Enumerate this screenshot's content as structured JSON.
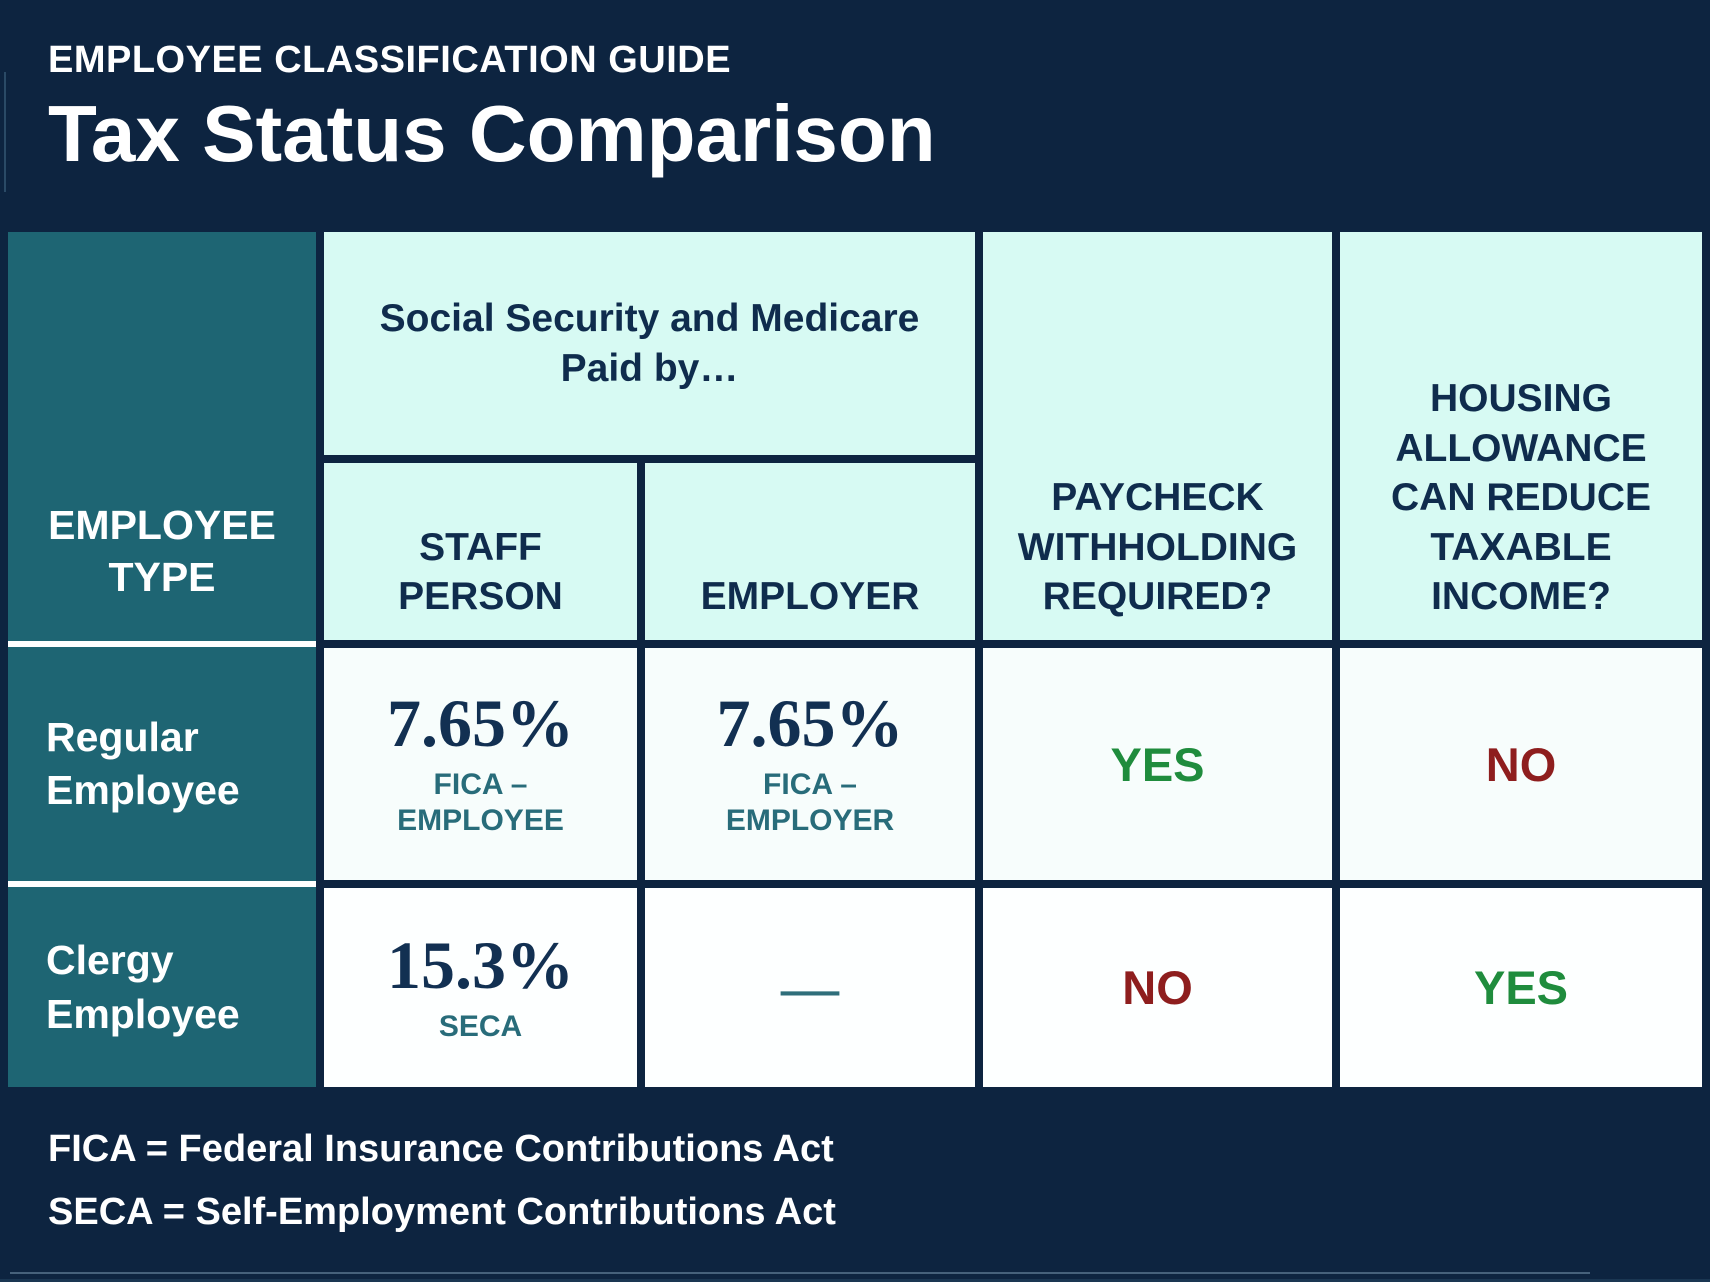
{
  "header": {
    "kicker": "EMPLOYEE CLASSIFICATION GUIDE",
    "title": "Tax Status Comparison"
  },
  "table": {
    "employee_type_header": "EMPLOYEE\nTYPE",
    "group_header": "Social Security and Medicare\nPaid by…",
    "columns": {
      "staff": "STAFF\nPERSON",
      "employer": "EMPLOYER",
      "withholding": "PAYCHECK\nWITHHOLDING\nREQUIRED?",
      "housing": "HOUSING\nALLOWANCE\nCAN REDUCE\nTAXABLE\nINCOME?"
    },
    "rows": [
      {
        "type": "Regular\nEmployee",
        "staff_pct": "7.65%",
        "staff_label": "FICA –\nEMPLOYEE",
        "employer_value": "7.65%",
        "employer_label": "FICA –\nEMPLOYER",
        "withholding": {
          "text": "YES",
          "color": "#1F8C3D"
        },
        "housing": {
          "text": "NO",
          "color": "#8E1E1E"
        }
      },
      {
        "type": "Clergy\nEmployee",
        "staff_pct": "15.3%",
        "staff_label": "SECA",
        "employer_value": "—",
        "employer_label": "",
        "withholding": {
          "text": "NO",
          "color": "#8E1E1E"
        },
        "housing": {
          "text": "YES",
          "color": "#1F8C3D"
        }
      }
    ]
  },
  "footnotes": [
    "FICA = Federal Insurance Contributions Act",
    "SECA = Self-Employment Contributions Act"
  ],
  "colors": {
    "page_background": "#0D2440",
    "employee_type_column": "#1E6573",
    "header_cell": "#D7FAF3",
    "navy_text": "#0F2C4D",
    "teal_label_text": "#286C7A",
    "yes_green": "#1F8C3D",
    "no_red": "#8E1E1E",
    "white_row_separator": "#FFFFFF"
  }
}
